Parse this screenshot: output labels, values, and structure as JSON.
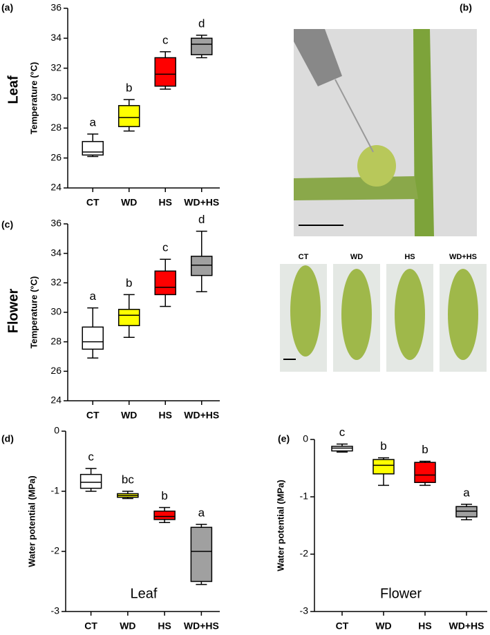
{
  "chart_data": [
    {
      "type": "box",
      "panel": "(a)",
      "side_label": "Leaf",
      "ylabel": "Temperature (°C)",
      "categories": [
        "CT",
        "WD",
        "HS",
        "WD+HS"
      ],
      "colors": [
        "#ffffff",
        "#ffff00",
        "#ff0000",
        "#a0a0a0"
      ],
      "boxes": [
        {
          "min": 26.1,
          "q1": 26.2,
          "median": 26.4,
          "q3": 27.1,
          "max": 27.6
        },
        {
          "min": 27.8,
          "q1": 28.1,
          "median": 28.7,
          "q3": 29.5,
          "max": 29.9
        },
        {
          "min": 30.6,
          "q1": 30.8,
          "median": 31.6,
          "q3": 32.7,
          "max": 33.1
        },
        {
          "min": 32.7,
          "q1": 32.9,
          "median": 33.6,
          "q3": 34.0,
          "max": 34.2
        }
      ],
      "letters": [
        "a",
        "b",
        "c",
        "d"
      ],
      "ylim": [
        24,
        36
      ],
      "yticks": [
        24,
        26,
        28,
        30,
        32,
        34,
        36
      ]
    },
    {
      "type": "box",
      "panel": "(c)",
      "side_label": "Flower",
      "ylabel": "Temperature (°C)",
      "categories": [
        "CT",
        "WD",
        "HS",
        "WD+HS"
      ],
      "colors": [
        "#ffffff",
        "#ffff00",
        "#ff0000",
        "#a0a0a0"
      ],
      "boxes": [
        {
          "min": 26.9,
          "q1": 27.5,
          "median": 28.0,
          "q3": 29.0,
          "max": 30.3
        },
        {
          "min": 28.3,
          "q1": 29.1,
          "median": 29.8,
          "q3": 30.2,
          "max": 31.2
        },
        {
          "min": 30.4,
          "q1": 31.2,
          "median": 31.7,
          "q3": 32.8,
          "max": 33.6
        },
        {
          "min": 31.4,
          "q1": 32.5,
          "median": 33.2,
          "q3": 33.8,
          "max": 35.5
        }
      ],
      "letters": [
        "a",
        "b",
        "c",
        "d"
      ],
      "ylim": [
        24,
        36
      ],
      "yticks": [
        24,
        26,
        28,
        30,
        32,
        34,
        36
      ]
    },
    {
      "type": "box",
      "panel": "(d)",
      "annotation": "Leaf",
      "ylabel": "Water potential (MPa)",
      "categories": [
        "CT",
        "WD",
        "HS",
        "WD+HS"
      ],
      "colors": [
        "#ffffff",
        "#ffff00",
        "#ff0000",
        "#a0a0a0"
      ],
      "boxes": [
        {
          "min": -1.0,
          "q1": -0.95,
          "median": -0.85,
          "q3": -0.72,
          "max": -0.62
        },
        {
          "min": -1.12,
          "q1": -1.1,
          "median": -1.07,
          "q3": -1.04,
          "max": -1.0
        },
        {
          "min": -1.52,
          "q1": -1.47,
          "median": -1.42,
          "q3": -1.33,
          "max": -1.27
        },
        {
          "min": -2.55,
          "q1": -2.5,
          "median": -2.0,
          "q3": -1.6,
          "max": -1.55
        }
      ],
      "letters": [
        "c",
        "bc",
        "b",
        "a"
      ],
      "ylim": [
        -3,
        0
      ],
      "yticks": [
        -3,
        -2,
        -1,
        0
      ]
    },
    {
      "type": "box",
      "panel": "(e)",
      "annotation": "Flower",
      "ylabel": "Water potential (MPa)",
      "categories": [
        "CT",
        "WD",
        "HS",
        "WD+HS"
      ],
      "colors": [
        "#ffffff",
        "#ffff00",
        "#ff0000",
        "#a0a0a0"
      ],
      "boxes": [
        {
          "min": -0.22,
          "q1": -0.2,
          "median": -0.15,
          "q3": -0.12,
          "max": -0.08
        },
        {
          "min": -0.8,
          "q1": -0.6,
          "median": -0.45,
          "q3": -0.35,
          "max": -0.32
        },
        {
          "min": -0.8,
          "q1": -0.75,
          "median": -0.62,
          "q3": -0.4,
          "max": -0.38
        },
        {
          "min": -1.4,
          "q1": -1.35,
          "median": -1.25,
          "q3": -1.17,
          "max": -1.13
        }
      ],
      "letters": [
        "c",
        "b",
        "b",
        "a"
      ],
      "ylim": [
        -3,
        0
      ],
      "yticks": [
        -3,
        -2,
        -1,
        0
      ]
    }
  ],
  "photo": {
    "panel": "(b)",
    "labels": [
      "CT",
      "WD",
      "HS",
      "WD+HS"
    ]
  }
}
